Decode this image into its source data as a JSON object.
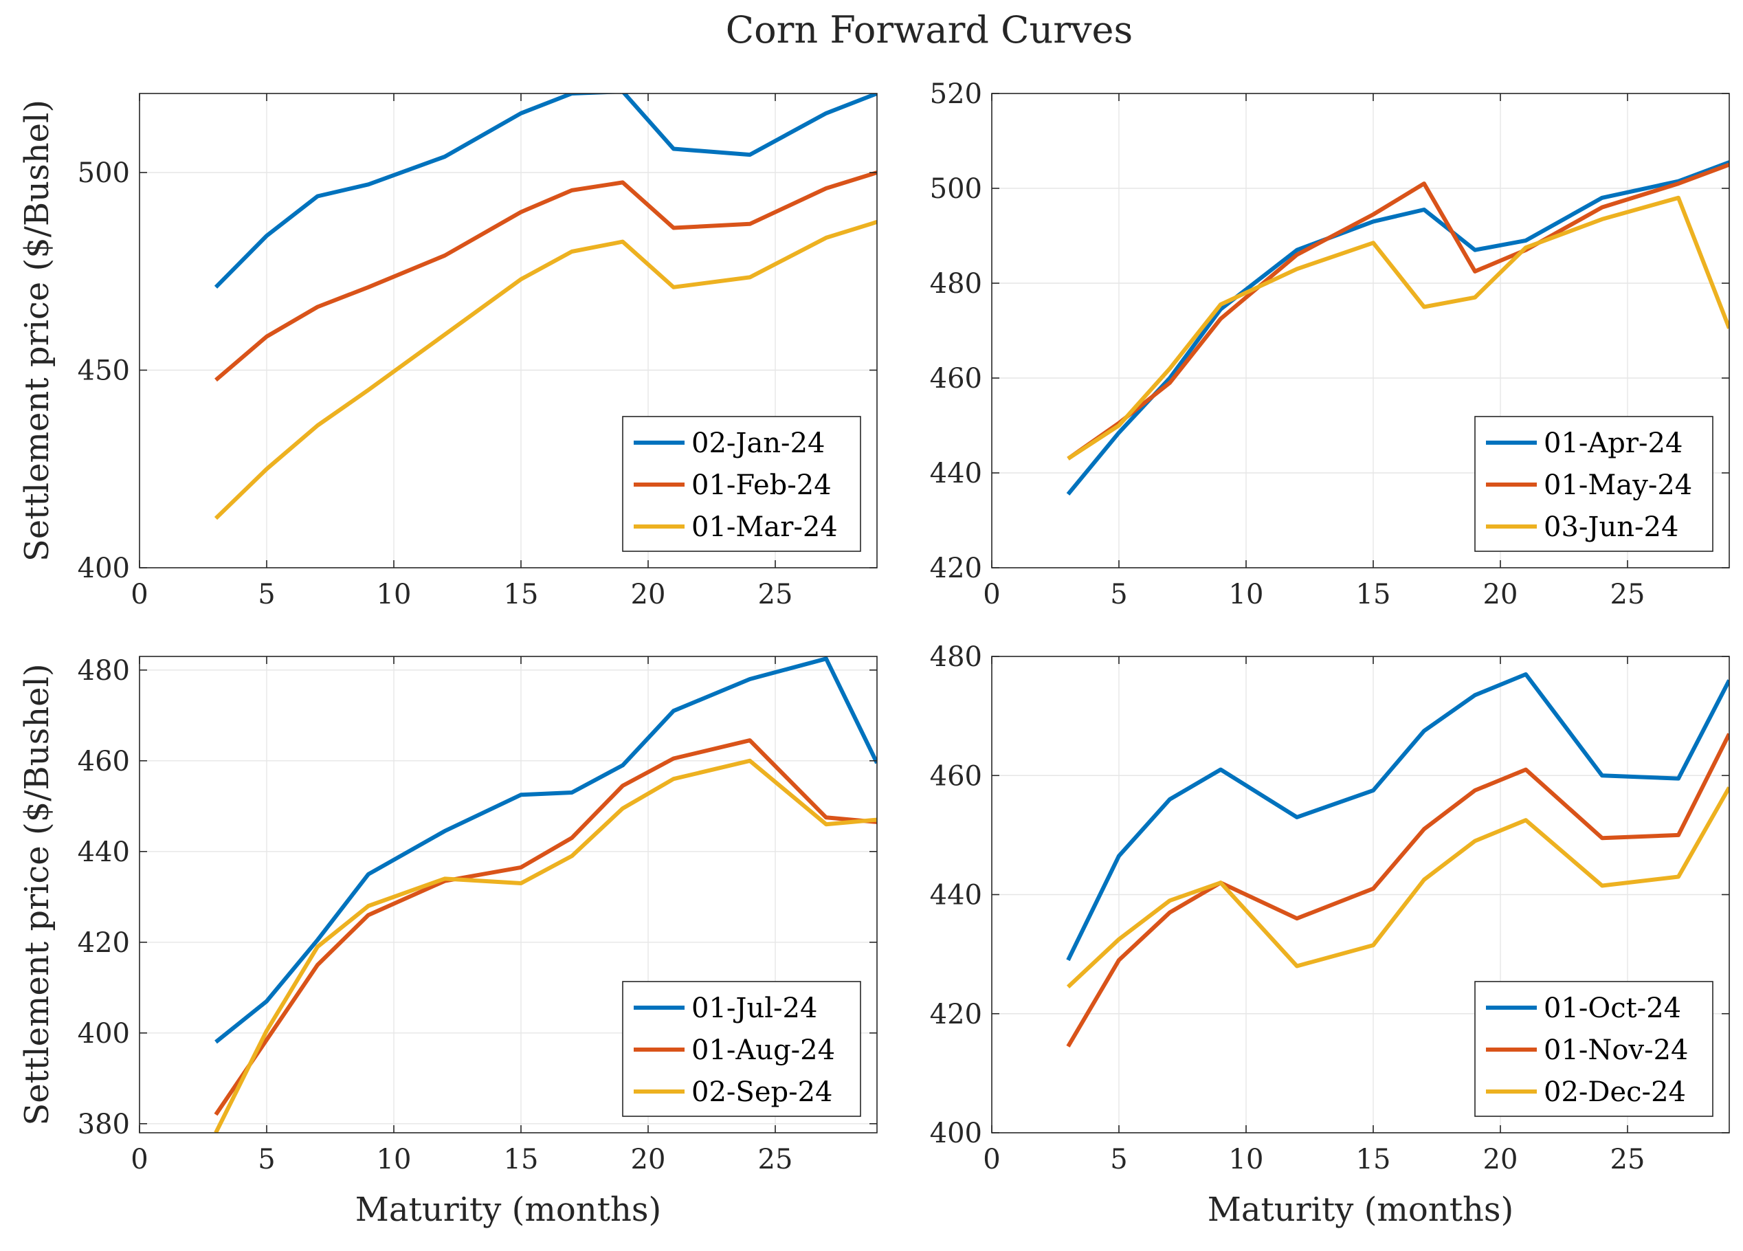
{
  "figure_title": "Corn Forward Curves",
  "chart_data": [
    {
      "type": "line",
      "position": "top-left",
      "ylabel": "Settlement price ($/Bushel)",
      "xlabel": "",
      "xlim": [
        0,
        29
      ],
      "ylim": [
        400,
        520
      ],
      "xticks": [
        0,
        5,
        10,
        15,
        20,
        25
      ],
      "yticks": [
        400,
        450,
        500
      ],
      "x": [
        3,
        5,
        7,
        9,
        12,
        15,
        17,
        19,
        21,
        24,
        27,
        29
      ],
      "legend_position": "bottom-right",
      "series": [
        {
          "name": "02-Jan-24",
          "color": "#0072BD",
          "values": [
            471,
            484,
            494,
            497,
            504,
            515,
            520,
            520.5,
            506,
            504.5,
            515,
            520
          ]
        },
        {
          "name": "01-Feb-24",
          "color": "#D95319",
          "values": [
            447.5,
            458.5,
            466,
            471,
            479,
            490,
            495.5,
            497.5,
            486,
            487,
            496,
            500
          ]
        },
        {
          "name": "01-Mar-24",
          "color": "#EDB120",
          "values": [
            412.5,
            425,
            436,
            445,
            459,
            473,
            480,
            482.5,
            471,
            473.5,
            483.5,
            487.5
          ]
        }
      ]
    },
    {
      "type": "line",
      "position": "top-right",
      "ylabel": "",
      "xlabel": "",
      "xlim": [
        0,
        29
      ],
      "ylim": [
        420,
        520
      ],
      "xticks": [
        0,
        5,
        10,
        15,
        20,
        25
      ],
      "yticks": [
        420,
        440,
        460,
        480,
        500,
        520
      ],
      "x": [
        3,
        5,
        7,
        9,
        12,
        15,
        17,
        19,
        21,
        24,
        27,
        29
      ],
      "legend_position": "bottom-right",
      "series": [
        {
          "name": "01-Apr-24",
          "color": "#0072BD",
          "values": [
            435.5,
            448.5,
            460,
            474.5,
            487,
            493,
            495.5,
            487,
            489,
            498,
            501.5,
            505.5
          ]
        },
        {
          "name": "01-May-24",
          "color": "#D95319",
          "values": [
            443,
            450.5,
            459,
            472.5,
            486,
            494.5,
            501,
            482.5,
            487,
            496,
            501,
            505
          ]
        },
        {
          "name": "03-Jun-24",
          "color": "#EDB120",
          "values": [
            443,
            450,
            462,
            475.5,
            483,
            488.5,
            475,
            477,
            487.5,
            493.5,
            498,
            470.5
          ]
        }
      ]
    },
    {
      "type": "line",
      "position": "bottom-left",
      "ylabel": "Settlement price ($/Bushel)",
      "xlabel": "Maturity (months)",
      "xlim": [
        0,
        29
      ],
      "ylim": [
        378,
        483
      ],
      "xticks": [
        0,
        5,
        10,
        15,
        20,
        25
      ],
      "yticks": [
        380,
        400,
        420,
        440,
        460,
        480
      ],
      "x": [
        3,
        5,
        7,
        9,
        12,
        15,
        17,
        19,
        21,
        24,
        27,
        29
      ],
      "legend_position": "bottom-right",
      "series": [
        {
          "name": "01-Jul-24",
          "color": "#0072BD",
          "values": [
            398,
            407,
            420.5,
            435,
            444.5,
            452.5,
            453,
            459,
            471,
            478,
            482.5,
            459.5
          ]
        },
        {
          "name": "01-Aug-24",
          "color": "#D95319",
          "values": [
            382,
            398.5,
            415,
            426,
            433.5,
            436.5,
            443,
            454.5,
            460.5,
            464.5,
            447.5,
            446.5
          ]
        },
        {
          "name": "02-Sep-24",
          "color": "#EDB120",
          "values": [
            378,
            400.5,
            419,
            428,
            434,
            433,
            439,
            449.5,
            456,
            460,
            446,
            447
          ]
        }
      ]
    },
    {
      "type": "line",
      "position": "bottom-right",
      "ylabel": "",
      "xlabel": "Maturity (months)",
      "xlim": [
        0,
        29
      ],
      "ylim": [
        400,
        480
      ],
      "xticks": [
        0,
        5,
        10,
        15,
        20,
        25
      ],
      "yticks": [
        400,
        420,
        440,
        460,
        480
      ],
      "x": [
        3,
        5,
        7,
        9,
        12,
        15,
        17,
        19,
        21,
        24,
        27,
        29
      ],
      "legend_position": "bottom-right",
      "series": [
        {
          "name": "01-Oct-24",
          "color": "#0072BD",
          "values": [
            429,
            446.5,
            456,
            461,
            453,
            457.5,
            467.5,
            473.5,
            477,
            460,
            459.5,
            476
          ]
        },
        {
          "name": "01-Nov-24",
          "color": "#D95319",
          "values": [
            414.5,
            429,
            437,
            442,
            436,
            441,
            451,
            457.5,
            461,
            449.5,
            450,
            467
          ]
        },
        {
          "name": "02-Dec-24",
          "color": "#EDB120",
          "values": [
            424.5,
            432.5,
            439,
            442,
            428,
            431.5,
            442.5,
            449,
            452.5,
            441.5,
            443,
            458
          ]
        }
      ]
    }
  ]
}
